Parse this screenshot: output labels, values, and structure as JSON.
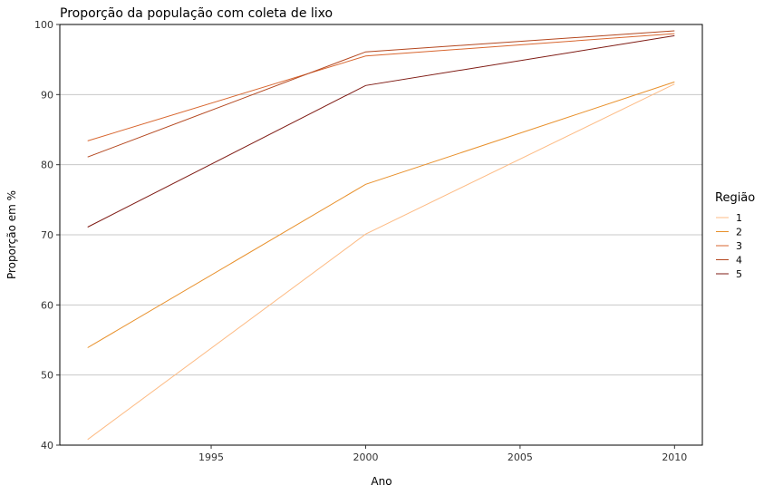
{
  "chart_data": {
    "type": "line",
    "title": "Proporção da população com coleta de lixo",
    "xlabel": "Ano",
    "ylabel": "Proporção em %",
    "x": [
      1991,
      2000,
      2010
    ],
    "xlim": [
      1990.1,
      2010.9
    ],
    "ylim": [
      40,
      100
    ],
    "xticks": [
      1995,
      2000,
      2005,
      2010
    ],
    "yticks": [
      40,
      50,
      60,
      70,
      80,
      90,
      100
    ],
    "grid": "horizontal",
    "legend_title": "Região",
    "legend_position": "right",
    "series": [
      {
        "name": "1",
        "color": "#fdbb84",
        "values": [
          40.8,
          70.1,
          91.5
        ]
      },
      {
        "name": "2",
        "color": "#e8902b",
        "values": [
          53.9,
          77.2,
          91.8
        ]
      },
      {
        "name": "3",
        "color": "#d8662f",
        "values": [
          83.4,
          95.5,
          98.7
        ]
      },
      {
        "name": "4",
        "color": "#b4471f",
        "values": [
          81.1,
          96.1,
          99.1
        ]
      },
      {
        "name": "5",
        "color": "#7f1b14",
        "values": [
          71.1,
          91.3,
          98.4
        ]
      }
    ]
  }
}
